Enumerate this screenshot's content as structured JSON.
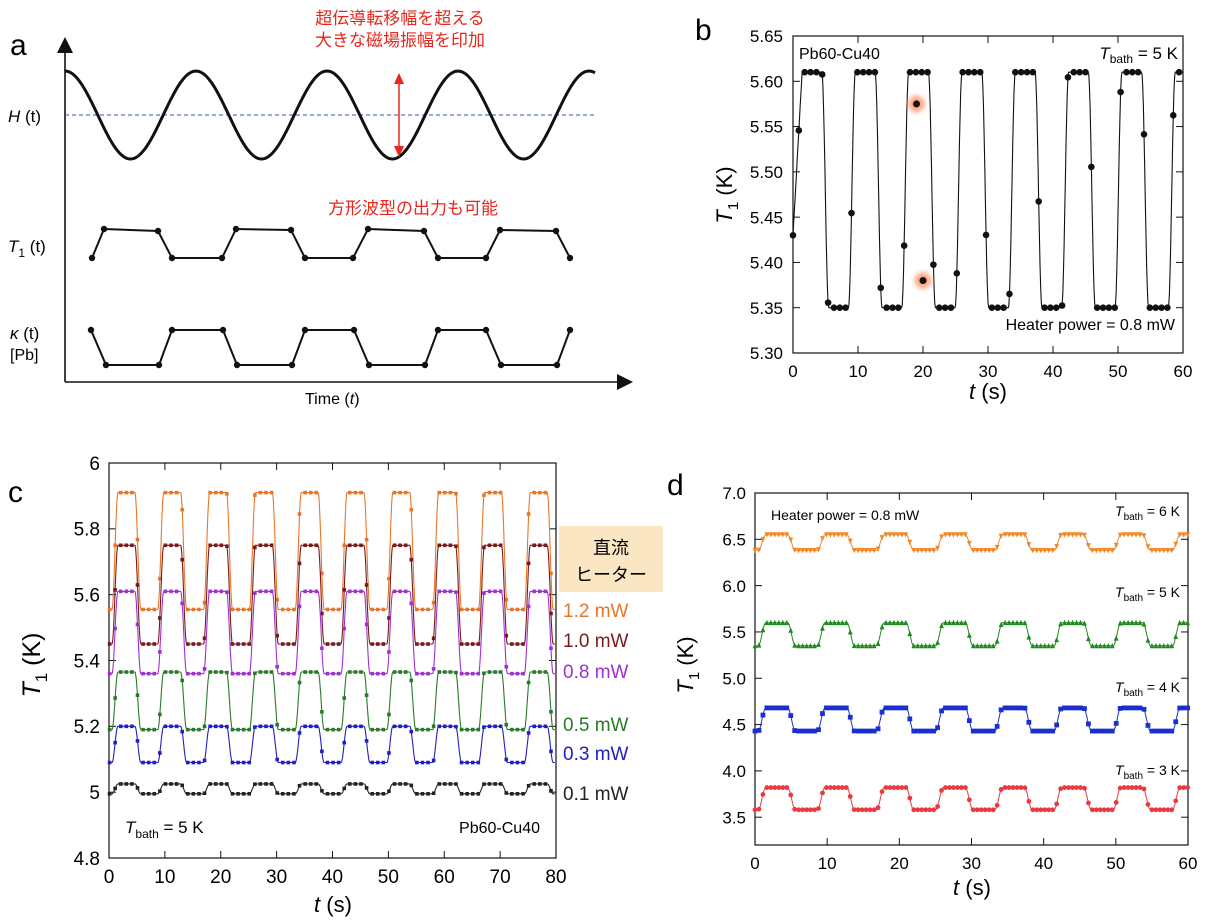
{
  "colors": {
    "ink": "#111111",
    "red": "#e8261d",
    "dash": "#2f5aa8",
    "orange": "#e8762a",
    "darkred": "#7a1a1a",
    "purple": "#a030d0",
    "green": "#2a7a2a",
    "blue": "#2020c0",
    "black": "#222222",
    "peach": "#fbe6c4",
    "d_orange": "#f0882a",
    "d_green": "#1e8a1e",
    "d_blue": "#1a2fd0",
    "d_red": "#e83a40"
  },
  "panel_a": {
    "letter": "a",
    "annotation_top_line1": "超伝導転移幅を超える",
    "annotation_top_line2": "大きな磁場振幅を印加",
    "annotation_mid": "方形波型の出力も可能",
    "label_H": "H",
    "label_H_arg": " (t)",
    "label_T1": "T",
    "label_T1_sub": "1",
    "label_T1_arg": " (t)",
    "label_kappa": "κ",
    "label_kappa_arg": " (t)",
    "label_pb": "[Pb]",
    "xlabel_main": "Time (",
    "xlabel_var": "t",
    "xlabel_close": ")"
  },
  "panel_b": {
    "letter": "b",
    "sample": "Pb60-Cu40",
    "tbath_T": "T",
    "tbath_sub": "bath",
    "tbath_val": " = 5 K",
    "heater": "Heater power = 0.8 mW",
    "ylabel_T": "T",
    "ylabel_sub": "1",
    "ylabel_unit": " (K)",
    "xlabel_t": "t",
    "xlabel_unit": " (s)"
  },
  "panel_c": {
    "letter": "c",
    "sample": "Pb60-Cu40",
    "tbath_T": "T",
    "tbath_sub": "bath",
    "tbath_val": " = 5 K",
    "legend_title_1": "直流",
    "legend_title_2": "ヒーター",
    "ylabel_T": "T",
    "ylabel_sub": "1",
    "ylabel_unit": " (K)",
    "xlabel_t": "t",
    "xlabel_unit": " (s)"
  },
  "panel_d": {
    "letter": "d",
    "heater": "Heater power = 0.8 mW",
    "ylabel_T": "T",
    "ylabel_sub": "1",
    "ylabel_unit": " (K)",
    "xlabel_t": "t",
    "xlabel_unit": " (s)",
    "tbath_T": "T",
    "tbath_sub": "bath",
    "labels": [
      " = 6 K",
      " = 5 K",
      " = 4 K",
      " = 3 K"
    ]
  },
  "chart_data": [
    {
      "panel": "a",
      "type": "line",
      "title": "",
      "xlabel": "Time (t)",
      "series": [
        {
          "name": "H (t)",
          "shape": "sinusoid",
          "cycles": 4.4
        },
        {
          "name": "T1 (t)",
          "shape": "square wave (low/high plateaus)"
        },
        {
          "name": "κ (t) [Pb]",
          "shape": "square wave, inverted"
        }
      ]
    },
    {
      "panel": "b",
      "type": "line",
      "xlabel": "t (s)",
      "ylabel": "T1 (K)",
      "xlim": [
        0,
        60
      ],
      "ylim": [
        5.3,
        5.65
      ],
      "xticks": [
        0,
        10,
        20,
        30,
        40,
        50,
        60
      ],
      "yticks": [
        5.3,
        5.35,
        5.4,
        5.45,
        5.5,
        5.55,
        5.6,
        5.65
      ],
      "period_s": 8.2,
      "low_K": 5.35,
      "high_K": 5.61,
      "highlighted_points": [
        {
          "t": 19.0,
          "T1": 5.575
        },
        {
          "t": 20.0,
          "T1": 5.38
        }
      ],
      "series": [
        {
          "name": "",
          "t_start": 0,
          "t_end": 60
        }
      ]
    },
    {
      "panel": "c",
      "type": "line",
      "xlabel": "t (s)",
      "ylabel": "T1 (K)",
      "xlim": [
        0,
        80
      ],
      "ylim": [
        4.8,
        6.0
      ],
      "xticks": [
        0,
        10,
        20,
        30,
        40,
        50,
        60,
        70,
        80
      ],
      "yticks": [
        4.8,
        5,
        5.2,
        5.4,
        5.6,
        5.8,
        6
      ],
      "ytick_labels": [
        "4.8",
        "5",
        "5.2",
        "5.4",
        "5.6",
        "5.8",
        "6"
      ],
      "period_s": 8.2,
      "series": [
        {
          "name": "1.2 mW",
          "low": 5.555,
          "high": 5.91,
          "color": "#e8762a"
        },
        {
          "name": "1.0 mW",
          "low": 5.45,
          "high": 5.75,
          "color": "#7a1a1a"
        },
        {
          "name": "0.8 mW",
          "low": 5.36,
          "high": 5.61,
          "color": "#a030d0"
        },
        {
          "name": "0.5 mW",
          "low": 5.19,
          "high": 5.365,
          "color": "#2a7a2a"
        },
        {
          "name": "0.3 mW",
          "low": 5.09,
          "high": 5.2,
          "color": "#2020c0"
        },
        {
          "name": "0.1 mW",
          "low": 4.995,
          "high": 5.025,
          "color": "#222222"
        }
      ]
    },
    {
      "panel": "d",
      "type": "line",
      "xlabel": "t (s)",
      "ylabel": "T1 (K)",
      "xlim": [
        0,
        60
      ],
      "ylim": [
        3.2,
        7.0
      ],
      "xticks": [
        0,
        10,
        20,
        30,
        40,
        50,
        60
      ],
      "yticks": [
        3.5,
        4.0,
        4.5,
        5.0,
        5.5,
        6.0,
        6.5,
        7.0
      ],
      "ytick_labels": [
        "3.5",
        "4.0",
        "4.5",
        "5.0",
        "5.5",
        "6.0",
        "6.5",
        "7.0"
      ],
      "period_s": 8.2,
      "series": [
        {
          "name": "6 K",
          "low": 6.38,
          "high": 6.55,
          "color": "#f0882a",
          "marker": "triangle-down"
        },
        {
          "name": "5 K",
          "low": 5.35,
          "high": 5.6,
          "color": "#1e8a1e",
          "marker": "triangle-up"
        },
        {
          "name": "4 K",
          "low": 4.43,
          "high": 4.68,
          "color": "#1a2fd0",
          "marker": "square"
        },
        {
          "name": "3 K",
          "low": 3.58,
          "high": 3.82,
          "color": "#e83a40",
          "marker": "circle"
        }
      ]
    }
  ]
}
